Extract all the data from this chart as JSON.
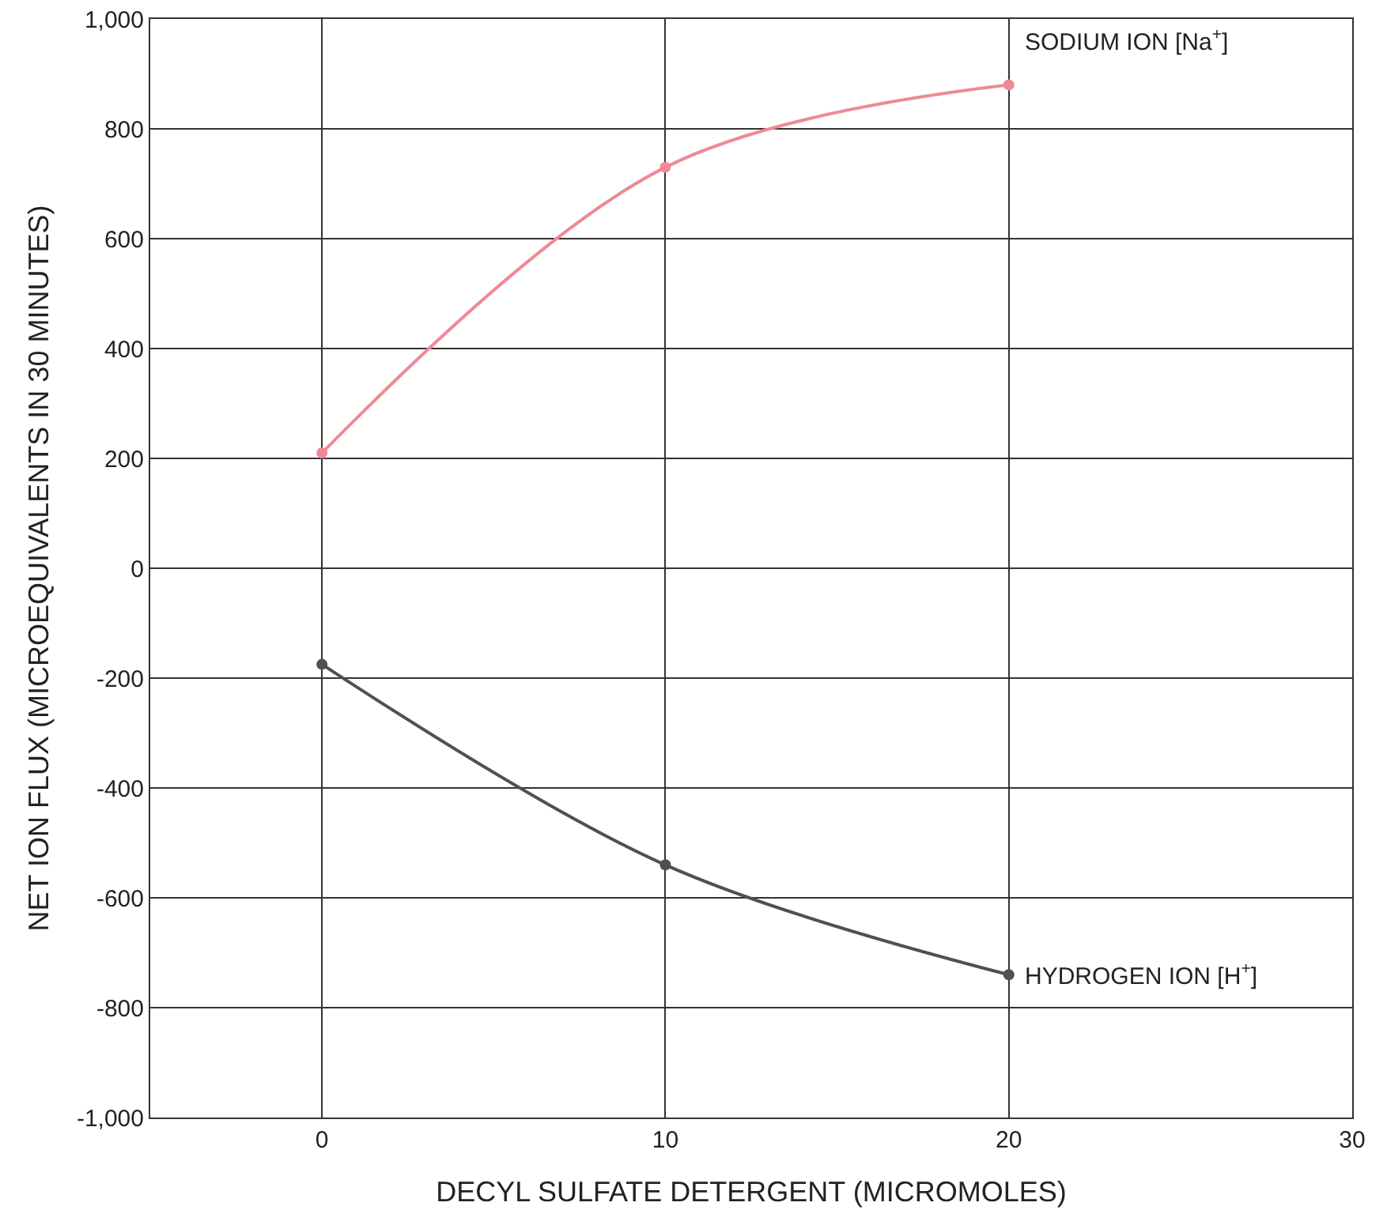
{
  "chart_data": {
    "type": "line",
    "xlabel": "DECYL SULFATE DETERGENT (MICROMOLES)",
    "ylabel": "NET ION FLUX (MICROEQUIVALENTS IN 30 MINUTES)",
    "x": [
      0,
      10,
      20
    ],
    "series": [
      {
        "name": "SODIUM ION [Na$^{+}$]",
        "color": "#ee8a96",
        "values": [
          210,
          730,
          880
        ]
      },
      {
        "name": "HYDROGEN ION [H$^{+}$]",
        "color": "#505050",
        "values": [
          -175,
          -540,
          -740
        ]
      }
    ],
    "xlim": [
      -5,
      30
    ],
    "xticks": [
      0,
      10,
      20,
      30
    ],
    "ylim": [
      -1000,
      1000
    ],
    "yticks": [
      {
        "value": -1000,
        "label": "-1,000"
      },
      {
        "value": -800,
        "label": "-800"
      },
      {
        "value": -600,
        "label": "-600"
      },
      {
        "value": -400,
        "label": "-400"
      },
      {
        "value": -200,
        "label": "-200"
      },
      0,
      200,
      400,
      600,
      800,
      {
        "value": 1000,
        "label": "1,000"
      }
    ],
    "grid": true,
    "marker": "circle",
    "line_style": "solid",
    "legend": false
  }
}
